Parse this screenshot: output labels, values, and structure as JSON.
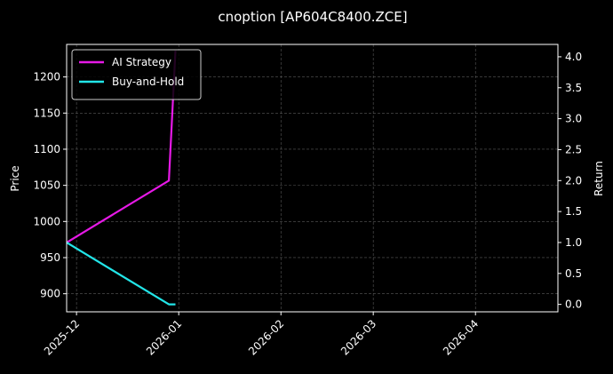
{
  "chart_data": {
    "type": "line",
    "title": "cnoption [AP604C8400.ZCE]",
    "xlabel": "",
    "ylabel": "Price",
    "ylabel_right": "Return",
    "x_ticks": [
      "2025-12",
      "2026-01",
      "2026-02",
      "2026-03",
      "2026-04"
    ],
    "y_ticks": [
      900,
      950,
      1000,
      1050,
      1100,
      1150,
      1200
    ],
    "y_ticks_right": [
      "0.0",
      "0.5",
      "1.0",
      "1.5",
      "2.0",
      "2.5",
      "3.0",
      "3.5",
      "4.0"
    ],
    "xlim": [
      "2025-11-28",
      "2026-04-26"
    ],
    "ylim": [
      875,
      1245
    ],
    "ylim_right": [
      -0.12,
      4.2
    ],
    "grid": true,
    "legend_position": "top-left",
    "series": [
      {
        "name": "AI Strategy",
        "color": "#e619e6",
        "axis": "right",
        "x": [
          "2025-11-28",
          "2025-12-29",
          "2025-12-31"
        ],
        "values": [
          1.0,
          2.0,
          4.1
        ]
      },
      {
        "name": "Buy-and-Hold",
        "color": "#22e5e8",
        "axis": "right",
        "x": [
          "2025-11-28",
          "2025-12-29",
          "2025-12-31"
        ],
        "values": [
          1.0,
          0.0,
          0.0
        ]
      }
    ]
  }
}
